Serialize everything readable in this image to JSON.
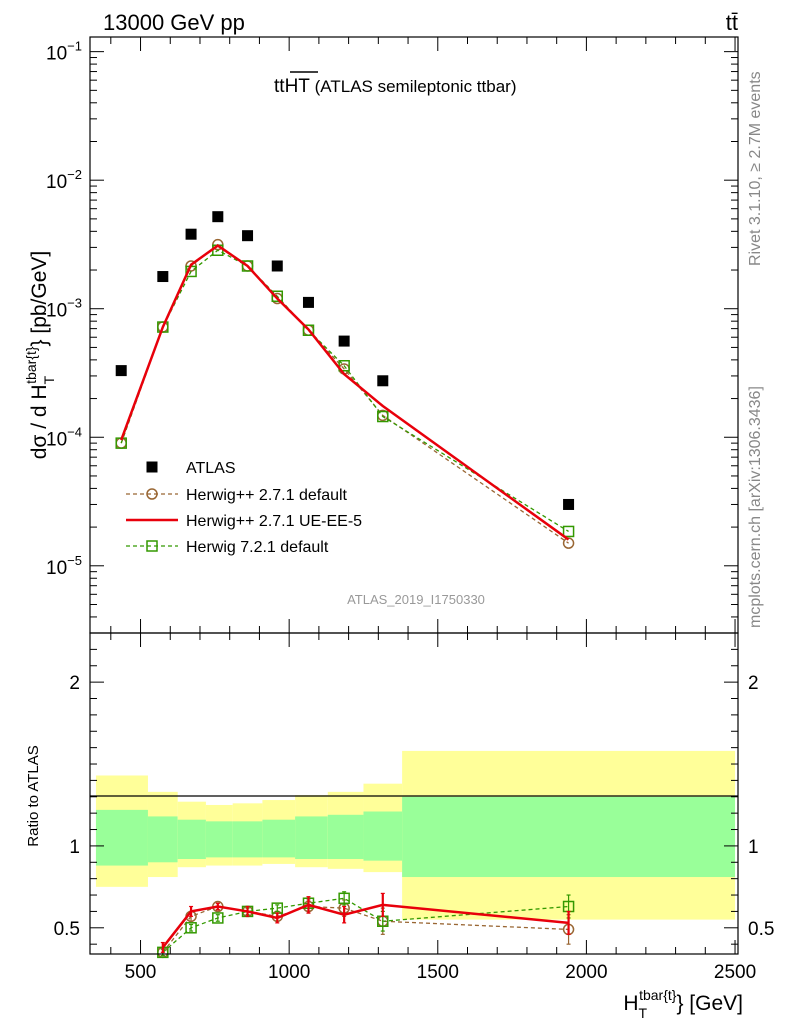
{
  "header": {
    "process": "13000 GeV pp",
    "channel": "tt̄",
    "rivet": "Rivet 3.1.10, ≥ 2.7M events",
    "mcplots": "mcplots.cern.ch [arXiv:1306.3436]",
    "analysis": "ATLAS_2019_I1750330"
  },
  "chart_data": [
    {
      "type": "scatter",
      "panel": "main",
      "title": "tt̄HT (ATLAS semileptonic ttbar)",
      "title_tt": "tt",
      "title_overline": "HT",
      "title_rest": " (ATLAS semileptonic ttbar)",
      "ylabel": "dσ / d H_T^{tbar{t}} [pb/GeV]",
      "yscale": "log",
      "ylim": [
        3e-06,
        0.13
      ],
      "xlim": [
        330,
        2510
      ],
      "ytick_labels": [
        "10^-5",
        "10^-4",
        "10^-3",
        "10^-2",
        "10^-1"
      ],
      "legend_position": "lower-left",
      "x": [
        435,
        575,
        670,
        760,
        860,
        960,
        1065,
        1185,
        1315,
        1940
      ],
      "series": [
        {
          "name": "ATLAS",
          "color": "#000000",
          "marker": "square-filled",
          "values": [
            0.00033,
            0.00178,
            0.0038,
            0.0052,
            0.0037,
            0.00215,
            0.00112,
            0.00056,
            0.000275,
            3e-05
          ]
        },
        {
          "name": "Herwig++ 2.7.1 default",
          "color": "#996633",
          "marker": "circle-open",
          "dashed": true,
          "values": [
            9e-05,
            0.00072,
            0.00215,
            0.00315,
            0.00215,
            0.0012,
            0.00068,
            0.00034,
            0.000148,
            1.5e-05
          ]
        },
        {
          "name": "Herwig++ 2.7.1 UE-EE-5",
          "color": "#e8000b",
          "marker": "none",
          "dashed": false,
          "values": [
            9.5e-05,
            0.00072,
            0.0022,
            0.0031,
            0.00215,
            0.0012,
            0.00069,
            0.00031,
            0.000175,
            1.6e-05
          ]
        },
        {
          "name": "Herwig 7.2.1 default",
          "color": "#339900",
          "marker": "square-open",
          "dashed": true,
          "values": [
            9e-05,
            0.00072,
            0.00195,
            0.00285,
            0.00215,
            0.00125,
            0.00068,
            0.00036,
            0.000145,
            1.85e-05
          ]
        }
      ]
    },
    {
      "type": "line",
      "panel": "ratio",
      "ylabel": "Ratio to ATLAS",
      "ylim": [
        0.34,
        2.3
      ],
      "xlim": [
        330,
        2510
      ],
      "xlabel": "H_T^{tbar{t}} [GeV]",
      "xticks": [
        500,
        1000,
        1500,
        2000,
        2500
      ],
      "yticks": [
        0.5,
        1,
        2
      ],
      "band_edges": [
        350,
        525,
        625,
        720,
        810,
        910,
        1020,
        1130,
        1250,
        1380,
        2500
      ],
      "band_yellow_lo": [
        0.75,
        0.81,
        0.87,
        0.88,
        0.88,
        0.89,
        0.87,
        0.86,
        0.84,
        0.55
      ],
      "band_yellow_hi": [
        1.43,
        1.33,
        1.27,
        1.25,
        1.26,
        1.28,
        1.31,
        1.33,
        1.38,
        1.58
      ],
      "band_green_lo": [
        0.88,
        0.9,
        0.92,
        0.93,
        0.93,
        0.93,
        0.92,
        0.92,
        0.91,
        0.81
      ],
      "band_green_hi": [
        1.22,
        1.18,
        1.16,
        1.15,
        1.15,
        1.16,
        1.18,
        1.19,
        1.21,
        1.3
      ],
      "x": [
        575,
        670,
        760,
        860,
        960,
        1065,
        1185,
        1315,
        1940
      ],
      "series": [
        {
          "name": "Herwig++ 2.7.1 default",
          "color": "#996633",
          "marker": "circle-open",
          "dashed": true,
          "values": [
            0.35,
            0.57,
            0.63,
            0.6,
            0.57,
            0.63,
            0.62,
            0.54,
            0.49
          ],
          "errors": [
            0.02,
            0.03,
            0.02,
            0.03,
            0.03,
            0.04,
            0.05,
            0.08,
            0.09
          ]
        },
        {
          "name": "Herwig++ 2.7.1 UE-EE-5",
          "color": "#e8000b",
          "marker": "none",
          "dashed": false,
          "values": [
            0.38,
            0.6,
            0.63,
            0.6,
            0.56,
            0.64,
            0.58,
            0.64,
            0.53
          ],
          "errors": [
            0.03,
            0.03,
            0.02,
            0.03,
            0.03,
            0.05,
            0.05,
            0.07,
            0.07
          ]
        },
        {
          "name": "Herwig 7.2.1 default",
          "color": "#339900",
          "marker": "square-open",
          "dashed": true,
          "values": [
            0.35,
            0.5,
            0.56,
            0.6,
            0.62,
            0.65,
            0.68,
            0.54,
            0.63
          ],
          "errors": [
            0.02,
            0.02,
            0.02,
            0.02,
            0.02,
            0.03,
            0.04,
            0.06,
            0.07
          ]
        }
      ]
    }
  ]
}
